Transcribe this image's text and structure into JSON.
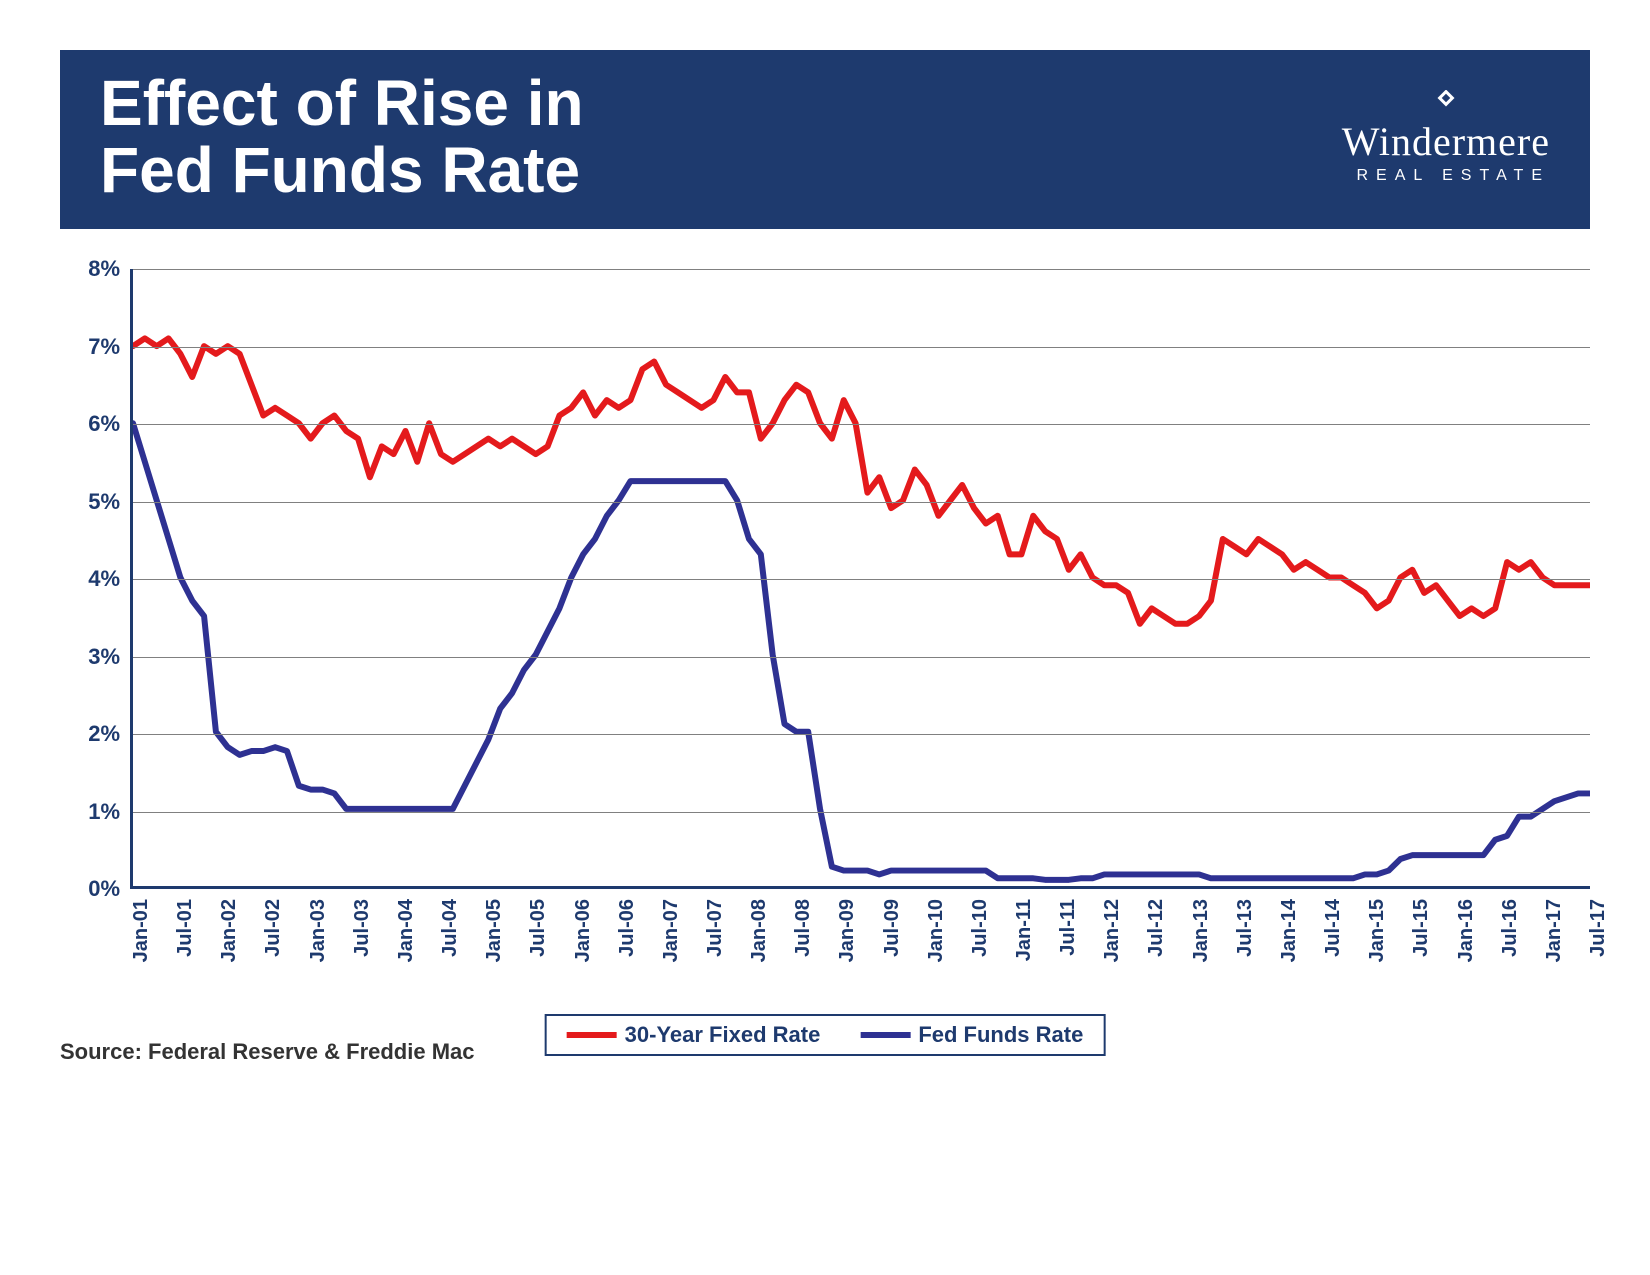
{
  "header": {
    "title_line1": "Effect of Rise in",
    "title_line2": "Fed Funds Rate",
    "logo_name": "Windermere",
    "logo_tagline": "REAL ESTATE"
  },
  "chart": {
    "type": "line",
    "ylim": [
      0,
      8
    ],
    "ytick_step": 1,
    "y_ticks": [
      "0%",
      "1%",
      "2%",
      "3%",
      "4%",
      "5%",
      "6%",
      "7%",
      "8%"
    ],
    "x_labels": [
      "Jan-01",
      "Jul-01",
      "Jan-02",
      "Jul-02",
      "Jan-03",
      "Jul-03",
      "Jan-04",
      "Jul-04",
      "Jan-05",
      "Jul-05",
      "Jan-06",
      "Jul-06",
      "Jan-07",
      "Jul-07",
      "Jan-08",
      "Jul-08",
      "Jan-09",
      "Jul-09",
      "Jan-10",
      "Jul-10",
      "Jan-11",
      "Jul-11",
      "Jan-12",
      "Jul-12",
      "Jan-13",
      "Jul-13",
      "Jan-14",
      "Jul-14",
      "Jan-15",
      "Jul-15",
      "Jan-16",
      "Jul-16",
      "Jan-17",
      "Jul-17"
    ],
    "series": [
      {
        "name": "30-Year Fixed Rate",
        "color": "#e41a1c",
        "line_width": 6,
        "values": [
          7.0,
          7.1,
          7.0,
          7.1,
          6.9,
          6.6,
          7.0,
          6.9,
          7.0,
          6.9,
          6.5,
          6.1,
          6.2,
          6.1,
          6.0,
          5.8,
          6.0,
          6.1,
          5.9,
          5.8,
          5.3,
          5.7,
          5.6,
          5.9,
          5.5,
          6.0,
          5.6,
          5.5,
          5.6,
          5.7,
          5.8,
          5.7,
          5.8,
          5.7,
          5.6,
          5.7,
          6.1,
          6.2,
          6.4,
          6.1,
          6.3,
          6.2,
          6.3,
          6.7,
          6.8,
          6.5,
          6.4,
          6.3,
          6.2,
          6.3,
          6.6,
          6.4,
          6.4,
          5.8,
          6.0,
          6.3,
          6.5,
          6.4,
          6.0,
          5.8,
          6.3,
          6.0,
          5.1,
          5.3,
          4.9,
          5.0,
          5.4,
          5.2,
          4.8,
          5.0,
          5.2,
          4.9,
          4.7,
          4.8,
          4.3,
          4.3,
          4.8,
          4.6,
          4.5,
          4.1,
          4.3,
          4.0,
          3.9,
          3.9,
          3.8,
          3.4,
          3.6,
          3.5,
          3.4,
          3.4,
          3.5,
          3.7,
          4.5,
          4.4,
          4.3,
          4.5,
          4.4,
          4.3,
          4.1,
          4.2,
          4.1,
          4.0,
          4.0,
          3.9,
          3.8,
          3.6,
          3.7,
          4.0,
          4.1,
          3.8,
          3.9,
          3.7,
          3.5,
          3.6,
          3.5,
          3.6,
          4.2,
          4.1,
          4.2,
          4.0,
          3.9,
          3.9,
          3.9,
          3.9
        ]
      },
      {
        "name": "Fed Funds Rate",
        "color": "#2e3192",
        "line_width": 6,
        "values": [
          6.0,
          5.5,
          5.0,
          4.5,
          4.0,
          3.7,
          3.5,
          2.0,
          1.8,
          1.7,
          1.75,
          1.75,
          1.8,
          1.75,
          1.3,
          1.25,
          1.25,
          1.2,
          1.0,
          1.0,
          1.0,
          1.0,
          1.0,
          1.0,
          1.0,
          1.0,
          1.0,
          1.0,
          1.3,
          1.6,
          1.9,
          2.3,
          2.5,
          2.8,
          3.0,
          3.3,
          3.6,
          4.0,
          4.3,
          4.5,
          4.8,
          5.0,
          5.25,
          5.25,
          5.25,
          5.25,
          5.25,
          5.25,
          5.25,
          5.25,
          5.25,
          5.0,
          4.5,
          4.3,
          3.0,
          2.1,
          2.0,
          2.0,
          1.0,
          0.25,
          0.2,
          0.2,
          0.2,
          0.15,
          0.2,
          0.2,
          0.2,
          0.2,
          0.2,
          0.2,
          0.2,
          0.2,
          0.2,
          0.1,
          0.1,
          0.1,
          0.1,
          0.08,
          0.08,
          0.08,
          0.1,
          0.1,
          0.15,
          0.15,
          0.15,
          0.15,
          0.15,
          0.15,
          0.15,
          0.15,
          0.15,
          0.1,
          0.1,
          0.1,
          0.1,
          0.1,
          0.1,
          0.1,
          0.1,
          0.1,
          0.1,
          0.1,
          0.1,
          0.1,
          0.15,
          0.15,
          0.2,
          0.35,
          0.4,
          0.4,
          0.4,
          0.4,
          0.4,
          0.4,
          0.4,
          0.6,
          0.65,
          0.9,
          0.9,
          1.0,
          1.1,
          1.15,
          1.2,
          1.2
        ]
      }
    ],
    "legend": {
      "items": [
        {
          "label": "30-Year Fixed Rate",
          "color": "#e41a1c"
        },
        {
          "label": "Fed Funds Rate",
          "color": "#2e3192"
        }
      ]
    },
    "grid_color": "#808080",
    "axis_color": "#1e3a6e",
    "background_color": "#ffffff",
    "tick_fontsize": 22,
    "tick_font_weight": 700,
    "legend_fontsize": 22
  },
  "source": "Source: Federal Reserve & Freddie Mac",
  "colors": {
    "header_bg": "#1e3a6e",
    "header_text": "#ffffff"
  }
}
